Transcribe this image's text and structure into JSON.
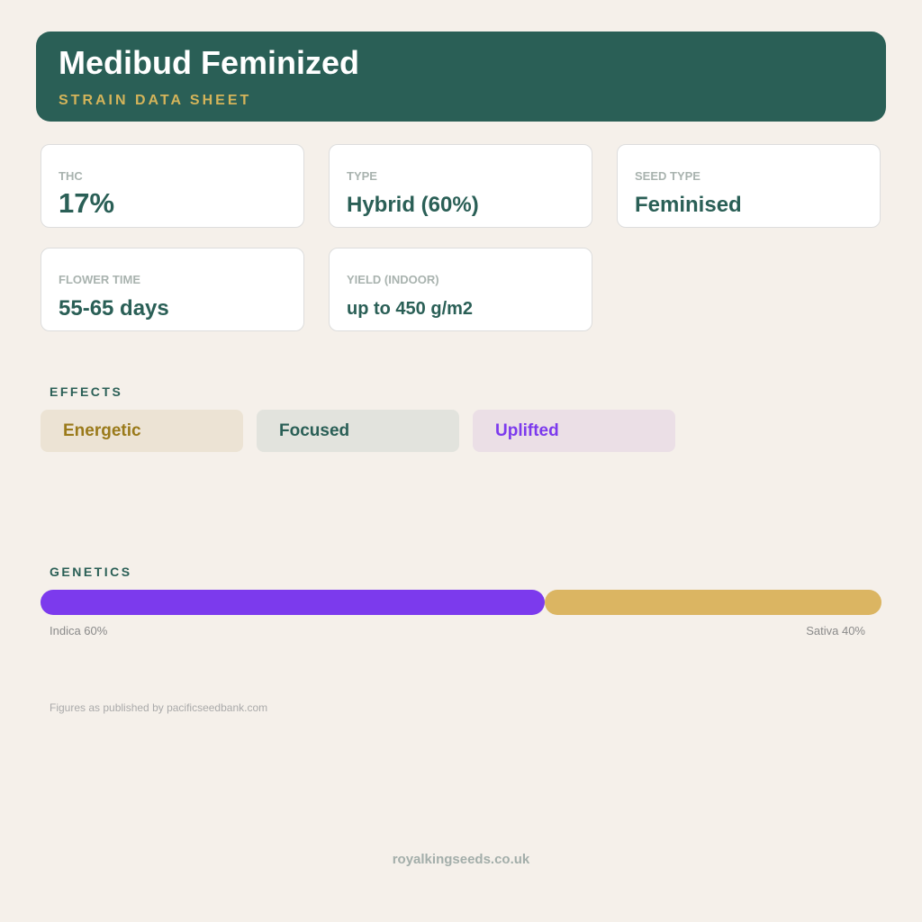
{
  "header": {
    "title": "Medibud Feminized",
    "subtitle": "STRAIN DATA SHEET"
  },
  "stats": [
    {
      "label": "THC",
      "value": "17%"
    },
    {
      "label": "TYPE",
      "value": "Hybrid (60%)"
    },
    {
      "label": "SEED TYPE",
      "value": "Feminised"
    },
    {
      "label": "FLOWER TIME",
      "value": "55-65 days"
    },
    {
      "label": "YIELD (INDOOR)",
      "value": "up to 450 g/m2"
    }
  ],
  "effects": {
    "title": "EFFECTS",
    "items": [
      "Energetic",
      "Focused",
      "Uplifted"
    ]
  },
  "genetics": {
    "title": "GENETICS",
    "segments": [
      {
        "label": "Indica 60%",
        "value": 60,
        "color": "#7c3aed"
      },
      {
        "label": "Sativa 40%",
        "value": 40,
        "color": "#dbb562"
      }
    ]
  },
  "note": "Figures as published by pacificseedbank.com",
  "footer": "royalkingseeds.co.uk"
}
